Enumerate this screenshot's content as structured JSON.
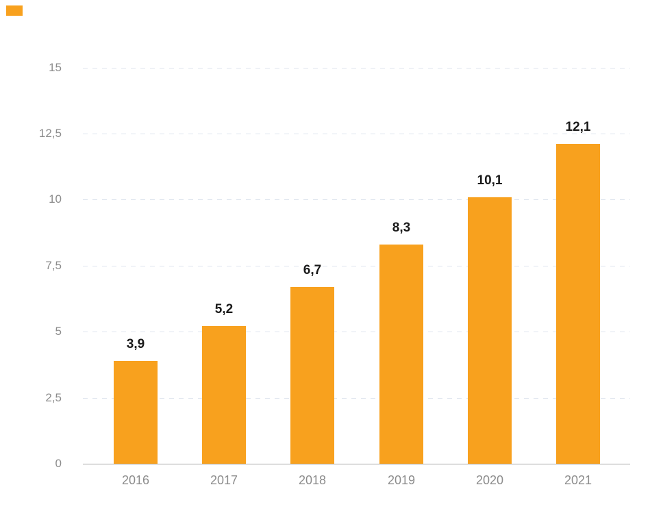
{
  "legend": {
    "chip_color": "#F8A11E"
  },
  "colors": {
    "bar": "#F8A11E",
    "value_label": "#1A1A1A",
    "tick_label": "#8C8C8C",
    "gridline": "#DEE4EE",
    "axis_line": "#A5A5A5",
    "background": "#FFFFFF"
  },
  "chart_data": {
    "type": "bar",
    "title": "",
    "xlabel": "",
    "ylabel": "",
    "categories": [
      "2016",
      "2017",
      "2018",
      "2019",
      "2020",
      "2021"
    ],
    "values": [
      3.9,
      5.2,
      6.7,
      8.3,
      10.1,
      12.1
    ],
    "value_labels": [
      "3,9",
      "5,2",
      "6,7",
      "8,3",
      "10,1",
      "12,1"
    ],
    "y_ticks": [
      {
        "value": 15,
        "label": "15"
      },
      {
        "value": 12.5,
        "label": "12,5"
      },
      {
        "value": 10,
        "label": "10"
      },
      {
        "value": 7.5,
        "label": "7,5"
      },
      {
        "value": 5,
        "label": "5"
      },
      {
        "value": 2.5,
        "label": "2,5"
      },
      {
        "value": 0,
        "label": "0"
      }
    ],
    "ylim": [
      0,
      15
    ],
    "grid": "horizontal-dashed",
    "legend_position": "none",
    "decimal_separator": ","
  }
}
